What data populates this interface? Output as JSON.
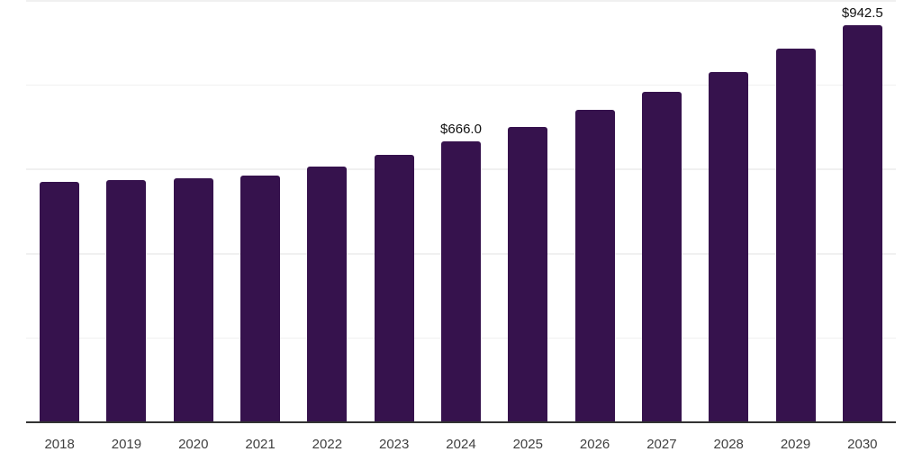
{
  "chart_data": {
    "type": "bar",
    "title": "",
    "xlabel": "",
    "ylabel": "",
    "categories": [
      "2018",
      "2019",
      "2020",
      "2021",
      "2022",
      "2023",
      "2024",
      "2025",
      "2026",
      "2027",
      "2028",
      "2029",
      "2030"
    ],
    "values": [
      570,
      575,
      578,
      586,
      606,
      634,
      666.0,
      701,
      741,
      785,
      831,
      886,
      942.5
    ],
    "value_labels": {
      "2024": "$666.0",
      "2030": "$942.5"
    },
    "ylim": [
      0,
      1000
    ],
    "grid_step": 200,
    "grid": true,
    "legend": false,
    "y_tick_labels_visible": false
  },
  "colors": {
    "bar": "#36124d",
    "gridline": "#f0f0f0",
    "axis": "#333333",
    "tick_label": "#404040",
    "value_label": "#111111",
    "background": "#ffffff"
  }
}
